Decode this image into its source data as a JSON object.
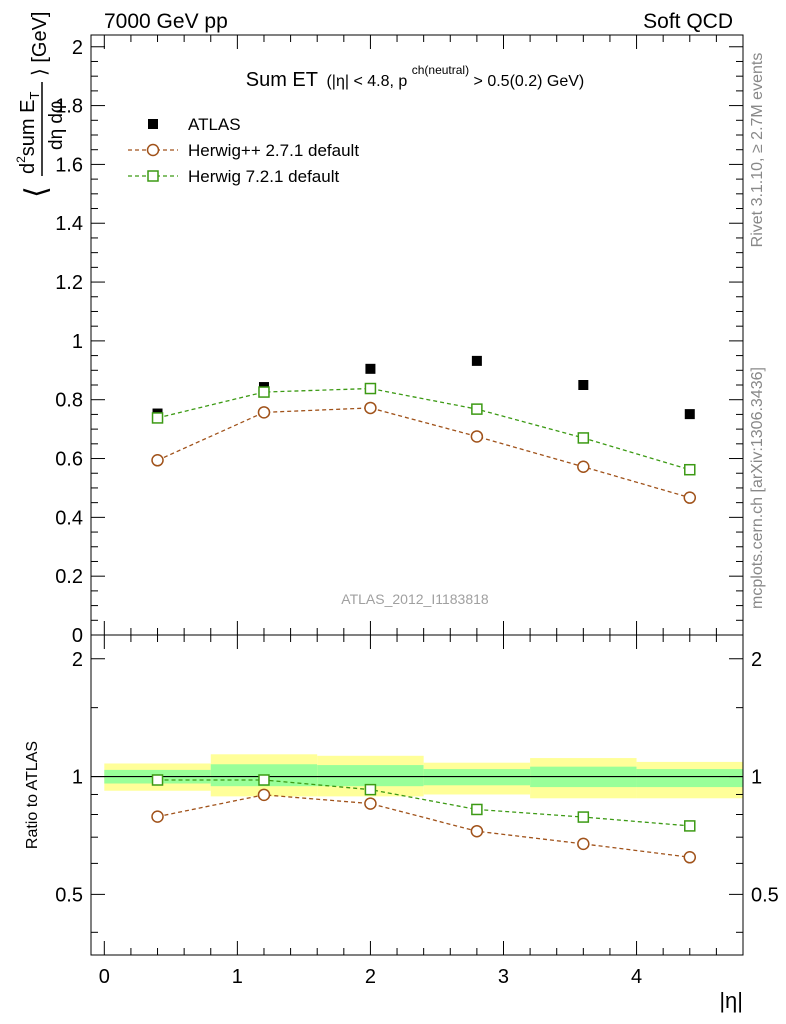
{
  "header": {
    "left_label": "7000 GeV pp",
    "right_label": "Soft QCD"
  },
  "side_text": {
    "rivet": "Rivet 3.1.10, ≥ 2.7M events",
    "mcplots": "mcplots.cern.ch [arXiv:1306.3436]"
  },
  "watermark": "ATLAS_2012_I1183818",
  "chart_data": [
    {
      "type": "scatter",
      "title_main": "Sum ET",
      "title_cut_1": "(|η| < 4.8, p",
      "title_cut_sup": "ch(neutral)",
      "title_cut_2": " > 0.5(0.2) GeV)",
      "ylabel_left": "⟨",
      "ylabel_num_d": "d",
      "ylabel_num_exp": "2",
      "ylabel_num_sum": "sum E",
      "ylabel_num_sub": "T",
      "ylabel_den": "dη dφ",
      "ylabel_right": "⟩ [GeV]",
      "xlim": [
        -0.1,
        4.8
      ],
      "ylim": [
        0,
        2.04
      ],
      "yticks": [
        0,
        0.2,
        0.4,
        0.6,
        0.8,
        1,
        1.2,
        1.4,
        1.6,
        1.8,
        2
      ],
      "ytick_labels": [
        "0",
        "0.2",
        "0.4",
        "0.6",
        "0.8",
        "1",
        "1.2",
        "1.4",
        "1.6",
        "1.8",
        "2"
      ],
      "legend_position": "top-left",
      "x": [
        0.4,
        1.2,
        2.0,
        2.8,
        3.6,
        4.4
      ],
      "series": [
        {
          "name": "ATLAS",
          "marker": "filled-square",
          "color": "#000000",
          "values": [
            0.753,
            0.843,
            0.905,
            0.932,
            0.85,
            0.751
          ]
        },
        {
          "name": "Herwig++ 2.7.1 default",
          "marker": "open-circle",
          "color": "#a0521a",
          "values": [
            0.594,
            0.757,
            0.772,
            0.675,
            0.572,
            0.467
          ]
        },
        {
          "name": "Herwig 7.2.1 default",
          "marker": "open-square",
          "color": "#3c9a14",
          "values": [
            0.738,
            0.826,
            0.838,
            0.768,
            0.67,
            0.562
          ]
        }
      ]
    },
    {
      "type": "scatter",
      "ylabel": "Ratio to ATLAS",
      "xlabel": "|η|",
      "xlim": [
        -0.1,
        4.8
      ],
      "ylim": [
        0.35,
        2.3
      ],
      "xticks": [
        0,
        1,
        2,
        3,
        4
      ],
      "xtick_labels": [
        "0",
        "1",
        "2",
        "3",
        "4"
      ],
      "yticks": [
        0.5,
        1,
        2
      ],
      "ytick_labels": [
        "0.5",
        "1",
        "2"
      ],
      "reference_line": 1,
      "x": [
        0.4,
        1.2,
        2.0,
        2.8,
        3.6,
        4.4
      ],
      "bins": [
        [
          0,
          0.8
        ],
        [
          0.8,
          1.6
        ],
        [
          1.6,
          2.4
        ],
        [
          2.4,
          3.2
        ],
        [
          3.2,
          4.0
        ],
        [
          4.0,
          4.8
        ]
      ],
      "band_outer": [
        [
          0.92,
          1.08
        ],
        [
          0.89,
          1.14
        ],
        [
          0.89,
          1.13
        ],
        [
          0.9,
          1.085
        ],
        [
          0.88,
          1.115
        ],
        [
          0.88,
          1.09
        ]
      ],
      "band_inner": [
        [
          0.96,
          1.04
        ],
        [
          0.945,
          1.075
        ],
        [
          0.945,
          1.07
        ],
        [
          0.95,
          1.045
        ],
        [
          0.94,
          1.06
        ],
        [
          0.94,
          1.045
        ]
      ],
      "series": [
        {
          "name": "Herwig++ 2.7.1 default",
          "marker": "open-circle",
          "color": "#a0521a",
          "values": [
            0.79,
            0.898,
            0.853,
            0.725,
            0.673,
            0.622
          ]
        },
        {
          "name": "Herwig 7.2.1 default",
          "marker": "open-square",
          "color": "#3c9a14",
          "values": [
            0.98,
            0.98,
            0.926,
            0.824,
            0.788,
            0.748
          ]
        }
      ]
    }
  ],
  "colors": {
    "band_outer": "#ffff99",
    "band_inner": "#99ff99",
    "side_text": "#888888"
  }
}
